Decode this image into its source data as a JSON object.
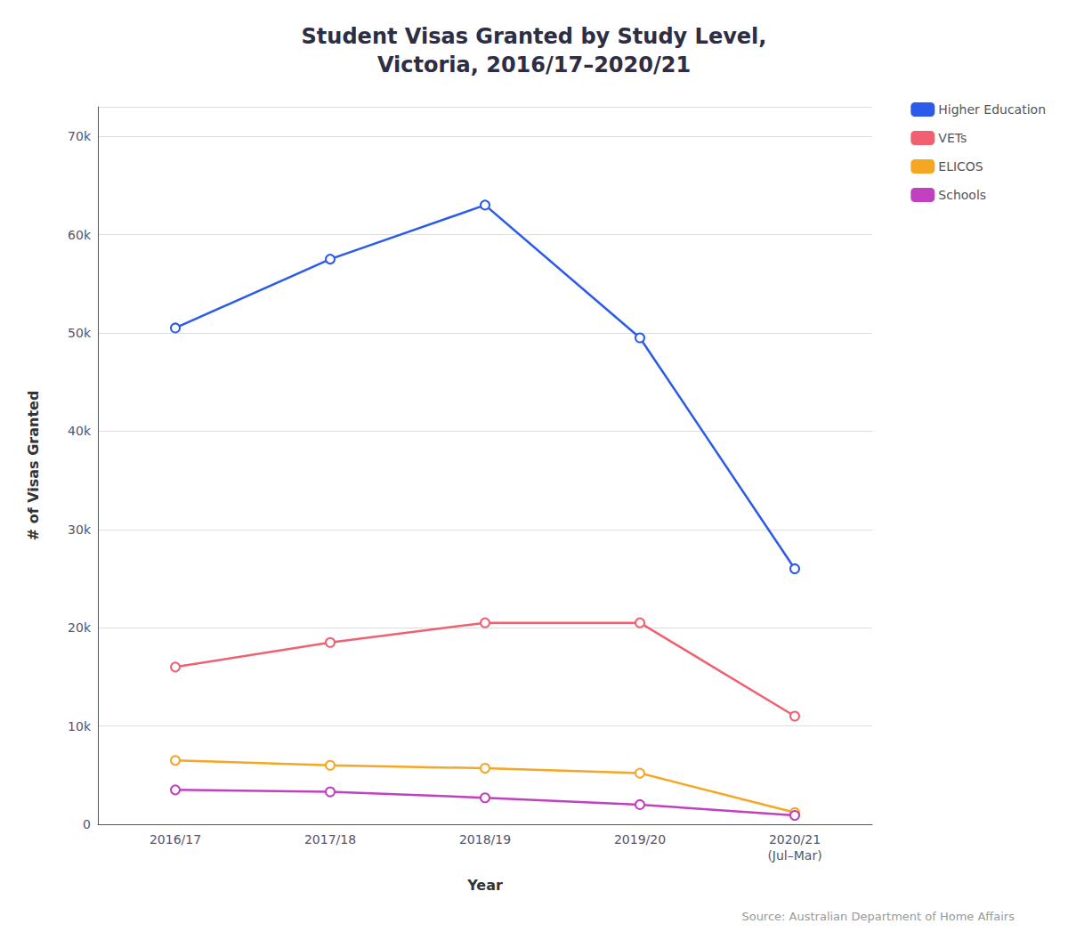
{
  "chart_data": {
    "type": "line",
    "title": "Student Visas Granted by Study Level,\nVictoria, 2016/17–2020/21",
    "xlabel": "Year",
    "ylabel": "# of Visas Granted",
    "annotations": [
      "Source: Australian Department of Home Affairs"
    ],
    "categories": [
      "2016/17",
      "2017/18",
      "2018/19",
      "2019/20",
      "2020/21\n(Jul–Mar)"
    ],
    "series": [
      {
        "name": "Higher Education",
        "color": "#2B5BE8",
        "values": [
          50500,
          57500,
          63000,
          49500,
          26000
        ]
      },
      {
        "name": "VETs",
        "color": "#F06070",
        "values": [
          16000,
          18500,
          20500,
          20500,
          11000
        ]
      },
      {
        "name": "ELICOS",
        "color": "#F5A623",
        "values": [
          6500,
          6000,
          5700,
          5200,
          1200
        ]
      },
      {
        "name": "Schools",
        "color": "#C040C0",
        "values": [
          3500,
          3300,
          2700,
          2000,
          900
        ]
      }
    ],
    "ylim": [
      0,
      73000
    ],
    "yticks": [
      0,
      {
        "value": 10000,
        "label": "10k"
      },
      {
        "value": 20000,
        "label": "20k"
      },
      {
        "value": 30000,
        "label": "30k"
      },
      {
        "value": 40000,
        "label": "40k"
      },
      {
        "value": 50000,
        "label": "50k"
      },
      {
        "value": 60000,
        "label": "60k"
      },
      {
        "value": 70000,
        "label": "70k"
      }
    ],
    "grid": true,
    "legend": "upper right",
    "marker": "circle"
  }
}
